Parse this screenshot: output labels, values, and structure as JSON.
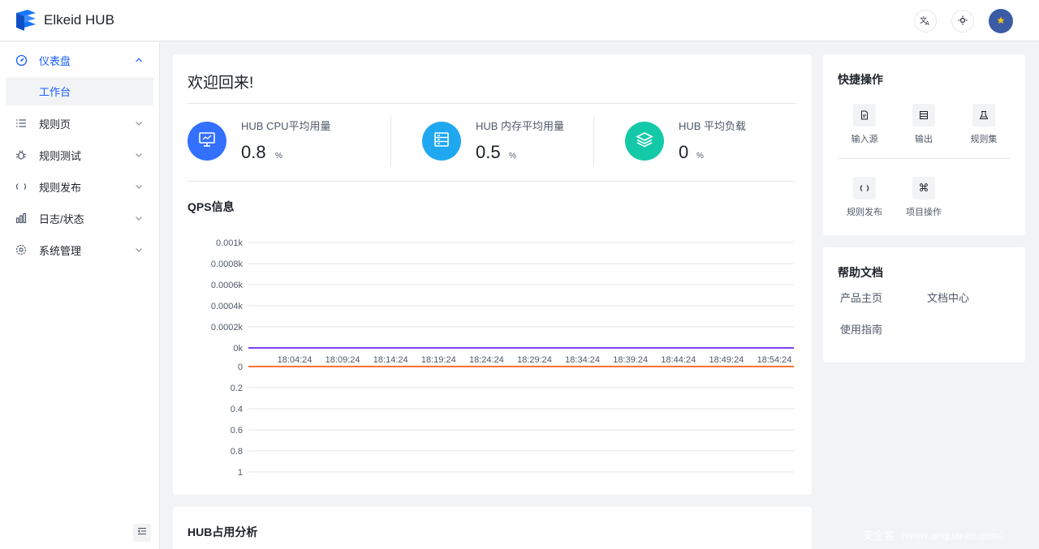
{
  "header": {
    "app_title": "Elkeid HUB",
    "translate_icon": "translate-icon",
    "theme_icon": "sun-icon",
    "avatar_icon": "star-avatar-icon"
  },
  "sidebar": {
    "items": [
      {
        "label": "仪表盘",
        "icon": "dashboard-icon",
        "expanded": true
      },
      {
        "label": "规则页",
        "icon": "list-icon"
      },
      {
        "label": "规则测试",
        "icon": "bug-icon"
      },
      {
        "label": "规则发布",
        "icon": "refresh-icon"
      },
      {
        "label": "日志/状态",
        "icon": "bar-chart-icon"
      },
      {
        "label": "系统管理",
        "icon": "gear-icon"
      }
    ],
    "subitem": "工作台"
  },
  "main": {
    "welcome": "欢迎回来!",
    "stats": [
      {
        "label": "HUB CPU平均用量",
        "value": "0.8",
        "unit": "%",
        "color": "#3370ff",
        "icon": "monitor-icon"
      },
      {
        "label": "HUB 内存平均用量",
        "value": "0.5",
        "unit": "%",
        "color": "#1fa8f0",
        "icon": "server-icon"
      },
      {
        "label": "HUB 平均负载",
        "value": "0",
        "unit": "%",
        "color": "#14c9a8",
        "icon": "layers-icon"
      }
    ],
    "qps_title": "QPS信息",
    "analysis_title": "HUB占用分析"
  },
  "chart_data": {
    "type": "line",
    "title": "QPS信息",
    "x": [
      "18:04:24",
      "18:09:24",
      "18:14:24",
      "18:19:24",
      "18:24:24",
      "18:29:24",
      "18:34:24",
      "18:39:24",
      "18:44:24",
      "18:49:24",
      "18:54:24"
    ],
    "top_axis_ticks": [
      "0.001k",
      "0.0008k",
      "0.0006k",
      "0.0004k",
      "0.0002k",
      "0k"
    ],
    "bottom_axis_ticks": [
      "0",
      "0.2",
      "0.4",
      "0.6",
      "0.8",
      "1"
    ],
    "series": [
      {
        "values": [
          0,
          0,
          0,
          0,
          0,
          0,
          0,
          0,
          0,
          0,
          0
        ],
        "color": "#7b3ff2"
      },
      {
        "values": [
          0,
          0,
          0,
          0,
          0,
          0,
          0,
          0,
          0,
          0,
          0
        ],
        "color": "#f77234"
      }
    ],
    "grid": true
  },
  "quick_ops": {
    "title": "快捷操作",
    "items": [
      {
        "label": "输入源",
        "icon": "file-icon"
      },
      {
        "label": "输出",
        "icon": "table-icon"
      },
      {
        "label": "规则集",
        "icon": "flask-icon"
      },
      {
        "label": "规则发布",
        "icon": "refresh-icon"
      },
      {
        "label": "项目操作",
        "icon": "command-icon"
      }
    ]
  },
  "help": {
    "title": "帮助文档",
    "links": [
      "产品主页",
      "文档中心",
      "使用指南"
    ]
  },
  "watermark": "安全客（www.anquanke.com）"
}
